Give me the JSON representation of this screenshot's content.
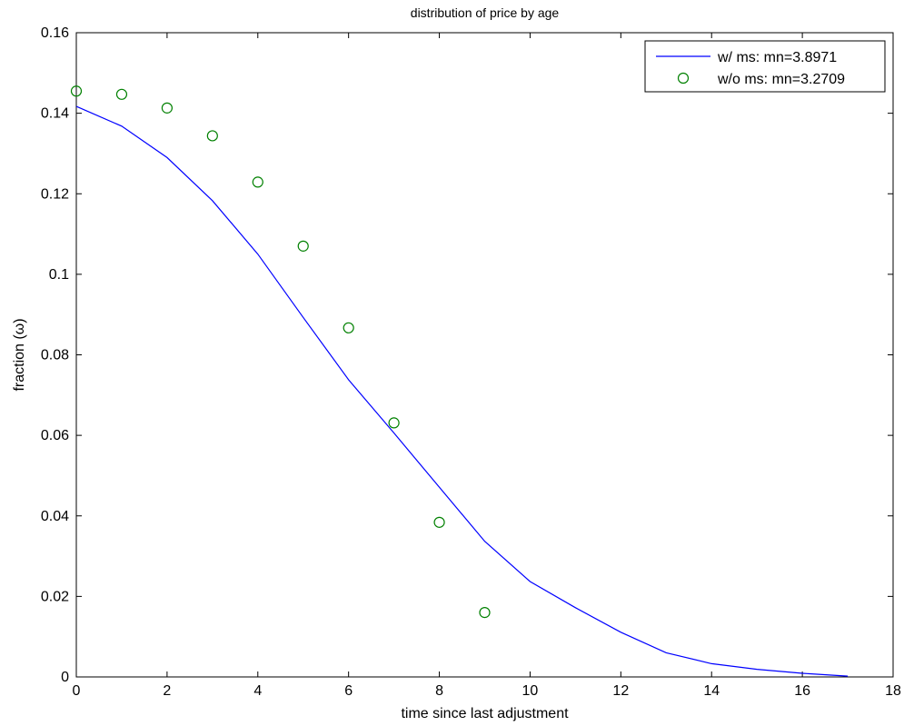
{
  "chart_data": {
    "type": "line",
    "title": "distribution of price by age",
    "xlabel": "time since last adjustment",
    "ylabel": "fraction (ω)",
    "xlim": [
      0,
      18
    ],
    "ylim": [
      0,
      0.16
    ],
    "xticks": [
      0,
      2,
      4,
      6,
      8,
      10,
      12,
      14,
      16,
      18
    ],
    "yticks": [
      0,
      0.02,
      0.04,
      0.06,
      0.08,
      0.1,
      0.12,
      0.14,
      0.16
    ],
    "xtick_labels": [
      "0",
      "2",
      "4",
      "6",
      "8",
      "10",
      "12",
      "14",
      "16",
      "18"
    ],
    "ytick_labels": [
      "0",
      "0.02",
      "0.04",
      "0.06",
      "0.08",
      "0.1",
      "0.12",
      "0.14",
      "0.16"
    ],
    "grid": false,
    "legend_position": "top-right",
    "series": [
      {
        "name": "w/ ms: mn=3.8971",
        "style": "line",
        "color": "#0000ff",
        "x": [
          0,
          1,
          2,
          3,
          4,
          5,
          6,
          7,
          8,
          9,
          10,
          11,
          12,
          13,
          14,
          15,
          16,
          17
        ],
        "y": [
          0.1417,
          0.1368,
          0.129,
          0.1183,
          0.105,
          0.0893,
          0.0738,
          0.0606,
          0.0471,
          0.0337,
          0.0237,
          0.0172,
          0.0111,
          0.006,
          0.0033,
          0.0019,
          0.0009,
          0.0002
        ]
      },
      {
        "name": "w/o ms: mn=3.2709",
        "style": "marker",
        "marker": "circle",
        "color": "#008000",
        "x": [
          0,
          1,
          2,
          3,
          4,
          5,
          6,
          7,
          8,
          9
        ],
        "y": [
          0.1455,
          0.1447,
          0.1413,
          0.1344,
          0.1229,
          0.107,
          0.0867,
          0.0631,
          0.0384,
          0.016
        ]
      }
    ]
  }
}
